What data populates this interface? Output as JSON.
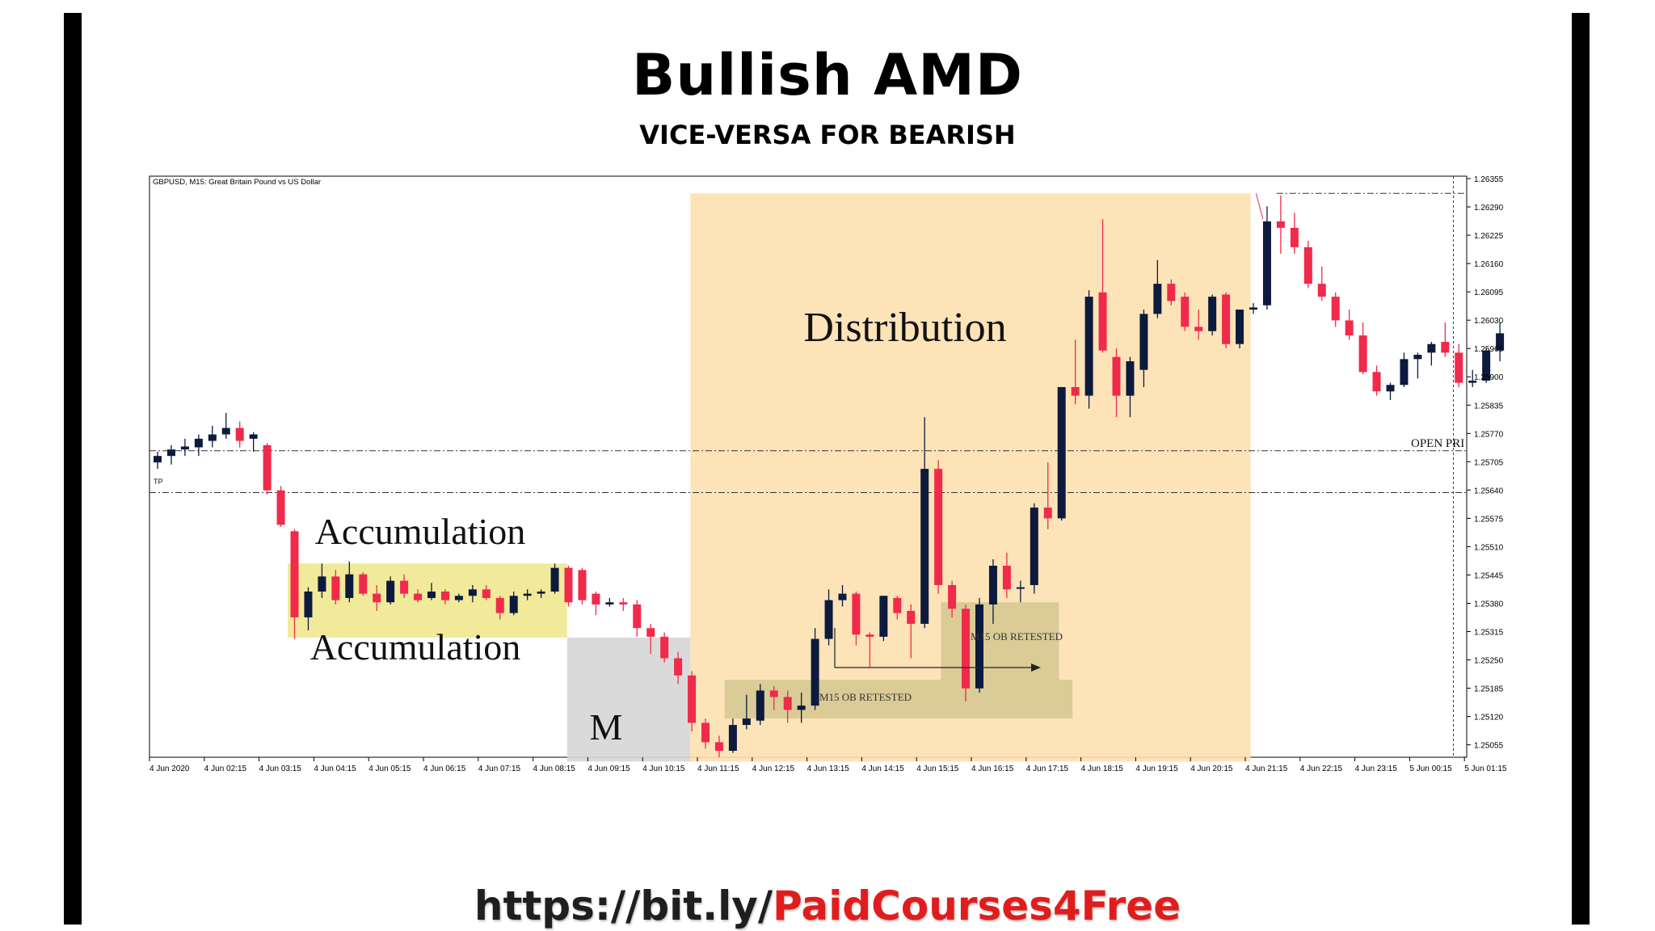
{
  "page": {
    "title": "Bullish AMD",
    "subtitle": "VICE-VERSA FOR BEARISH",
    "link": {
      "base": "https://bit.ly/",
      "highlight": "PaidCourses4Free"
    }
  },
  "colors": {
    "bull": "#0c1a3d",
    "bear": "#f02a4a",
    "accumulation_zone": "#f0e890",
    "manipulation_zone": "#d6d6d6",
    "distribution_zone": "#fde0b0",
    "order_block": "#d8c995",
    "link_accent": "#e01d1d"
  },
  "chart_data": {
    "type": "candlestick",
    "symbol_label": "GBPUSD, M15:  Great Britain Pound vs US Dollar",
    "ylim": [
      1.2502,
      1.2637
    ],
    "y_ticks": [
      "1.26355",
      "1.26290",
      "1.26225",
      "1.26160",
      "1.26095",
      "1.26030",
      "1.25965",
      "1.25900",
      "1.25835",
      "1.25770",
      "1.25705",
      "1.25640",
      "1.25575",
      "1.25510",
      "1.25445",
      "1.25380",
      "1.25315",
      "1.25250",
      "1.25185",
      "1.25120",
      "1.25055"
    ],
    "x_ticks": [
      "4 Jun 2020",
      "4 Jun 02:15",
      "4 Jun 03:15",
      "4 Jun 04:15",
      "4 Jun 05:15",
      "4 Jun 06:15",
      "4 Jun 07:15",
      "4 Jun 08:15",
      "4 Jun 09:15",
      "4 Jun 10:15",
      "4 Jun 11:15",
      "4 Jun 12:15",
      "4 Jun 13:15",
      "4 Jun 14:15",
      "4 Jun 15:15",
      "4 Jun 16:15",
      "4 Jun 17:15",
      "4 Jun 18:15",
      "4 Jun 19:15",
      "4 Jun 20:15",
      "4 Jun 21:15",
      "4 Jun 22:15",
      "4 Jun 23:15",
      "5 Jun 00:15",
      "5 Jun 01:15"
    ],
    "candles": [
      {
        "o": 1.25705,
        "h": 1.2573,
        "l": 1.2569,
        "c": 1.2572
      },
      {
        "o": 1.2572,
        "h": 1.25745,
        "l": 1.257,
        "c": 1.25735
      },
      {
        "o": 1.25735,
        "h": 1.2576,
        "l": 1.2572,
        "c": 1.25742
      },
      {
        "o": 1.2574,
        "h": 1.2577,
        "l": 1.2572,
        "c": 1.2576
      },
      {
        "o": 1.25755,
        "h": 1.2579,
        "l": 1.2574,
        "c": 1.2577
      },
      {
        "o": 1.2577,
        "h": 1.2582,
        "l": 1.2576,
        "c": 1.25785
      },
      {
        "o": 1.25785,
        "h": 1.258,
        "l": 1.2574,
        "c": 1.25755
      },
      {
        "o": 1.2576,
        "h": 1.25775,
        "l": 1.2573,
        "c": 1.2577
      },
      {
        "o": 1.25745,
        "h": 1.2575,
        "l": 1.2563,
        "c": 1.2564
      },
      {
        "o": 1.2564,
        "h": 1.2565,
        "l": 1.25555,
        "c": 1.2556
      },
      {
        "o": 1.25545,
        "h": 1.2555,
        "l": 1.25295,
        "c": 1.25345
      },
      {
        "o": 1.25345,
        "h": 1.25415,
        "l": 1.25315,
        "c": 1.25405
      },
      {
        "o": 1.25405,
        "h": 1.2547,
        "l": 1.2539,
        "c": 1.2544
      },
      {
        "o": 1.2544,
        "h": 1.25455,
        "l": 1.25375,
        "c": 1.25385
      },
      {
        "o": 1.2539,
        "h": 1.25475,
        "l": 1.2538,
        "c": 1.25445
      },
      {
        "o": 1.25445,
        "h": 1.2545,
        "l": 1.25395,
        "c": 1.254
      },
      {
        "o": 1.254,
        "h": 1.2542,
        "l": 1.2536,
        "c": 1.2538
      },
      {
        "o": 1.2538,
        "h": 1.2544,
        "l": 1.25375,
        "c": 1.2543
      },
      {
        "o": 1.2543,
        "h": 1.25445,
        "l": 1.2539,
        "c": 1.254
      },
      {
        "o": 1.254,
        "h": 1.2541,
        "l": 1.2538,
        "c": 1.25385
      },
      {
        "o": 1.2539,
        "h": 1.25425,
        "l": 1.25385,
        "c": 1.25405
      },
      {
        "o": 1.25405,
        "h": 1.2541,
        "l": 1.25375,
        "c": 1.25385
      },
      {
        "o": 1.25385,
        "h": 1.254,
        "l": 1.2538,
        "c": 1.25395
      },
      {
        "o": 1.25395,
        "h": 1.2542,
        "l": 1.2538,
        "c": 1.2541
      },
      {
        "o": 1.2541,
        "h": 1.2542,
        "l": 1.25385,
        "c": 1.2539
      },
      {
        "o": 1.2539,
        "h": 1.25395,
        "l": 1.2534,
        "c": 1.25355
      },
      {
        "o": 1.25355,
        "h": 1.25405,
        "l": 1.2535,
        "c": 1.25395
      },
      {
        "o": 1.25395,
        "h": 1.2541,
        "l": 1.25385,
        "c": 1.254
      },
      {
        "o": 1.254,
        "h": 1.2541,
        "l": 1.2539,
        "c": 1.25405
      },
      {
        "o": 1.25405,
        "h": 1.2547,
        "l": 1.254,
        "c": 1.2546
      },
      {
        "o": 1.2546,
        "h": 1.25465,
        "l": 1.2537,
        "c": 1.2538
      },
      {
        "o": 1.25455,
        "h": 1.2546,
        "l": 1.25375,
        "c": 1.25385
      },
      {
        "o": 1.254,
        "h": 1.25405,
        "l": 1.2535,
        "c": 1.25375
      },
      {
        "o": 1.25375,
        "h": 1.2539,
        "l": 1.2537,
        "c": 1.2538
      },
      {
        "o": 1.2538,
        "h": 1.2539,
        "l": 1.2536,
        "c": 1.25375
      },
      {
        "o": 1.25375,
        "h": 1.25385,
        "l": 1.253,
        "c": 1.2532
      },
      {
        "o": 1.2532,
        "h": 1.2533,
        "l": 1.2526,
        "c": 1.253
      },
      {
        "o": 1.253,
        "h": 1.2531,
        "l": 1.2524,
        "c": 1.2525
      },
      {
        "o": 1.2525,
        "h": 1.25265,
        "l": 1.2519,
        "c": 1.2521
      },
      {
        "o": 1.2521,
        "h": 1.2522,
        "l": 1.2508,
        "c": 1.251
      },
      {
        "o": 1.251,
        "h": 1.2511,
        "l": 1.2504,
        "c": 1.25055
      },
      {
        "o": 1.25055,
        "h": 1.2507,
        "l": 1.2502,
        "c": 1.25035
      },
      {
        "o": 1.25035,
        "h": 1.2511,
        "l": 1.2503,
        "c": 1.25095
      },
      {
        "o": 1.25095,
        "h": 1.25165,
        "l": 1.25085,
        "c": 1.2511
      },
      {
        "o": 1.25105,
        "h": 1.2519,
        "l": 1.25095,
        "c": 1.25175
      },
      {
        "o": 1.25175,
        "h": 1.25185,
        "l": 1.2513,
        "c": 1.2516
      },
      {
        "o": 1.2516,
        "h": 1.25175,
        "l": 1.251,
        "c": 1.2513
      },
      {
        "o": 1.2513,
        "h": 1.2517,
        "l": 1.251,
        "c": 1.2514
      },
      {
        "o": 1.2514,
        "h": 1.2532,
        "l": 1.2513,
        "c": 1.25295
      },
      {
        "o": 1.25295,
        "h": 1.2541,
        "l": 1.2528,
        "c": 1.25385
      },
      {
        "o": 1.25385,
        "h": 1.2542,
        "l": 1.2537,
        "c": 1.254
      },
      {
        "o": 1.254,
        "h": 1.25405,
        "l": 1.2528,
        "c": 1.25305
      },
      {
        "o": 1.25305,
        "h": 1.2531,
        "l": 1.2523,
        "c": 1.253
      },
      {
        "o": 1.253,
        "h": 1.25395,
        "l": 1.2529,
        "c": 1.25395
      },
      {
        "o": 1.2539,
        "h": 1.25395,
        "l": 1.2534,
        "c": 1.25355
      },
      {
        "o": 1.2536,
        "h": 1.25375,
        "l": 1.2525,
        "c": 1.2533
      },
      {
        "o": 1.2533,
        "h": 1.2581,
        "l": 1.2532,
        "c": 1.2569
      },
      {
        "o": 1.2569,
        "h": 1.2571,
        "l": 1.254,
        "c": 1.2542
      },
      {
        "o": 1.2542,
        "h": 1.2543,
        "l": 1.25345,
        "c": 1.25365
      },
      {
        "o": 1.25365,
        "h": 1.25375,
        "l": 1.2515,
        "c": 1.2518
      },
      {
        "o": 1.2518,
        "h": 1.2539,
        "l": 1.2517,
        "c": 1.25375
      },
      {
        "o": 1.25375,
        "h": 1.2548,
        "l": 1.2533,
        "c": 1.25465
      },
      {
        "o": 1.25465,
        "h": 1.25495,
        "l": 1.2539,
        "c": 1.2541
      },
      {
        "o": 1.25415,
        "h": 1.2543,
        "l": 1.2538,
        "c": 1.25415
      },
      {
        "o": 1.2542,
        "h": 1.2561,
        "l": 1.254,
        "c": 1.256
      },
      {
        "o": 1.256,
        "h": 1.25705,
        "l": 1.2555,
        "c": 1.25575
      },
      {
        "o": 1.25575,
        "h": 1.2588,
        "l": 1.2557,
        "c": 1.2588
      },
      {
        "o": 1.2588,
        "h": 1.2599,
        "l": 1.2584,
        "c": 1.2586
      },
      {
        "o": 1.2586,
        "h": 1.26105,
        "l": 1.2583,
        "c": 1.2609
      },
      {
        "o": 1.261,
        "h": 1.2627,
        "l": 1.2596,
        "c": 1.25965
      },
      {
        "o": 1.2595,
        "h": 1.2597,
        "l": 1.2581,
        "c": 1.2586
      },
      {
        "o": 1.2586,
        "h": 1.2595,
        "l": 1.2581,
        "c": 1.2594
      },
      {
        "o": 1.2592,
        "h": 1.2606,
        "l": 1.2588,
        "c": 1.2605
      },
      {
        "o": 1.2605,
        "h": 1.26175,
        "l": 1.2604,
        "c": 1.2612
      },
      {
        "o": 1.2612,
        "h": 1.2613,
        "l": 1.2607,
        "c": 1.2608
      },
      {
        "o": 1.2609,
        "h": 1.261,
        "l": 1.2601,
        "c": 1.2602
      },
      {
        "o": 1.2602,
        "h": 1.2606,
        "l": 1.2599,
        "c": 1.2601
      },
      {
        "o": 1.2601,
        "h": 1.26095,
        "l": 1.26,
        "c": 1.2609
      },
      {
        "o": 1.26095,
        "h": 1.261,
        "l": 1.2597,
        "c": 1.2598
      },
      {
        "o": 1.2598,
        "h": 1.2606,
        "l": 1.2597,
        "c": 1.2606
      },
      {
        "o": 1.2606,
        "h": 1.26075,
        "l": 1.2605,
        "c": 1.26065
      },
      {
        "o": 1.2607,
        "h": 1.263,
        "l": 1.2606,
        "c": 1.26265
      },
      {
        "o": 1.26265,
        "h": 1.26325,
        "l": 1.2619,
        "c": 1.2625
      },
      {
        "o": 1.2625,
        "h": 1.26285,
        "l": 1.2619,
        "c": 1.26205
      },
      {
        "o": 1.26205,
        "h": 1.2622,
        "l": 1.2611,
        "c": 1.2612
      },
      {
        "o": 1.2612,
        "h": 1.2616,
        "l": 1.2608,
        "c": 1.2609
      },
      {
        "o": 1.2609,
        "h": 1.261,
        "l": 1.2602,
        "c": 1.26035
      },
      {
        "o": 1.26035,
        "h": 1.2606,
        "l": 1.2599,
        "c": 1.26
      },
      {
        "o": 1.26,
        "h": 1.2603,
        "l": 1.2591,
        "c": 1.25915
      },
      {
        "o": 1.25915,
        "h": 1.2593,
        "l": 1.2586,
        "c": 1.2587
      },
      {
        "o": 1.2587,
        "h": 1.2589,
        "l": 1.2585,
        "c": 1.25885
      },
      {
        "o": 1.25885,
        "h": 1.2596,
        "l": 1.2588,
        "c": 1.25945
      },
      {
        "o": 1.25945,
        "h": 1.2596,
        "l": 1.259,
        "c": 1.25955
      },
      {
        "o": 1.2596,
        "h": 1.25985,
        "l": 1.2593,
        "c": 1.2598
      },
      {
        "o": 1.25985,
        "h": 1.2603,
        "l": 1.2595,
        "c": 1.2596
      },
      {
        "o": 1.2596,
        "h": 1.2598,
        "l": 1.2588,
        "c": 1.2589
      },
      {
        "o": 1.2589,
        "h": 1.2592,
        "l": 1.2588,
        "c": 1.25895
      },
      {
        "o": 1.25895,
        "h": 1.2597,
        "l": 1.2589,
        "c": 1.25965
      },
      {
        "o": 1.25965,
        "h": 1.2603,
        "l": 1.2594,
        "c": 1.26005
      }
    ],
    "levels": [
      {
        "price": 1.25732,
        "label": "OPEN PRI"
      },
      {
        "price": 1.25635,
        "label": "TP"
      },
      {
        "price": 1.2633,
        "label": ""
      }
    ],
    "zones": [
      {
        "label": "Accumulation",
        "from": 10,
        "to": 30.4,
        "top": 1.2547,
        "bottom": 1.25298
      },
      {
        "label": "M",
        "from": 30.4,
        "to": 39.4,
        "top": 1.25298,
        "bottom": 1.2501
      },
      {
        "label": "Distribution",
        "from": 39.4,
        "to": 80.3,
        "top": 1.2633,
        "bottom": 1.2501
      }
    ],
    "order_blocks": [
      {
        "label": "M15 OB RETESTED",
        "from": 57.7,
        "to": 66.3,
        "top": 1.2538,
        "bottom": 1.252
      },
      {
        "label": "M15 OB RETESTED",
        "from": 41.9,
        "to": 67.3,
        "top": 1.252,
        "bottom": 1.2511
      }
    ],
    "annotations": {
      "distribution": "Distribution",
      "accumulation_top": "Accumulation",
      "accumulation_bottom": "Accumulation",
      "manipulation": "M",
      "ob_upper": "M15 OB RETESTED",
      "ob_lower": "M15 OB RETESTED",
      "open_price": "OPEN PRI",
      "tp": "TP"
    }
  }
}
